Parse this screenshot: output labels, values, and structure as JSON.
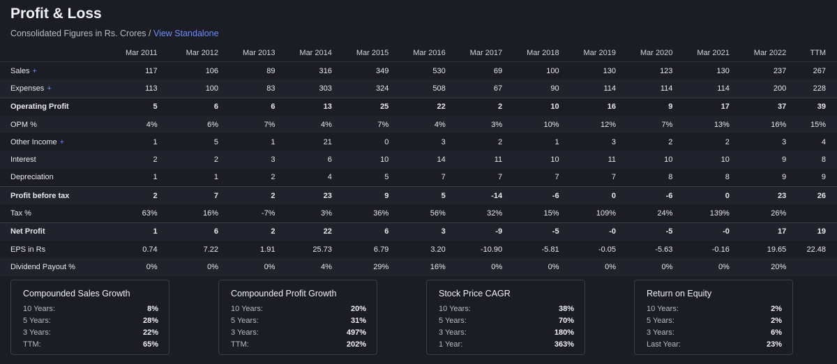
{
  "title": "Profit & Loss",
  "subtitle": {
    "text": "Consolidated Figures in Rs. Crores / ",
    "link": "View Standalone"
  },
  "columns": [
    "Mar 2011",
    "Mar 2012",
    "Mar 2013",
    "Mar 2014",
    "Mar 2015",
    "Mar 2016",
    "Mar 2017",
    "Mar 2018",
    "Mar 2019",
    "Mar 2020",
    "Mar 2021",
    "Mar 2022",
    "TTM"
  ],
  "rows": [
    {
      "label": "Sales",
      "plus": "+",
      "values": [
        "117",
        "106",
        "89",
        "316",
        "349",
        "530",
        "69",
        "100",
        "130",
        "123",
        "130",
        "237",
        "267"
      ]
    },
    {
      "label": "Expenses",
      "plus": "+",
      "values": [
        "113",
        "100",
        "83",
        "303",
        "324",
        "508",
        "67",
        "90",
        "114",
        "114",
        "114",
        "200",
        "228"
      ]
    },
    {
      "label": "Operating Profit",
      "values": [
        "5",
        "6",
        "6",
        "13",
        "25",
        "22",
        "2",
        "10",
        "16",
        "9",
        "17",
        "37",
        "39"
      ]
    },
    {
      "label": "OPM %",
      "values": [
        "4%",
        "6%",
        "7%",
        "4%",
        "7%",
        "4%",
        "3%",
        "10%",
        "12%",
        "7%",
        "13%",
        "16%",
        "15%"
      ]
    },
    {
      "label": "Other Income",
      "plus": "+",
      "values": [
        "1",
        "5",
        "1",
        "21",
        "0",
        "3",
        "2",
        "1",
        "3",
        "2",
        "2",
        "3",
        "4"
      ]
    },
    {
      "label": "Interest",
      "values": [
        "2",
        "2",
        "3",
        "6",
        "10",
        "14",
        "11",
        "10",
        "11",
        "10",
        "10",
        "9",
        "8"
      ]
    },
    {
      "label": "Depreciation",
      "values": [
        "1",
        "1",
        "2",
        "4",
        "5",
        "7",
        "7",
        "7",
        "7",
        "8",
        "8",
        "9",
        "9"
      ]
    },
    {
      "label": "Profit before tax",
      "values": [
        "2",
        "7",
        "2",
        "23",
        "9",
        "5",
        "-14",
        "-6",
        "0",
        "-6",
        "0",
        "23",
        "26"
      ]
    },
    {
      "label": "Tax %",
      "values": [
        "63%",
        "16%",
        "-7%",
        "3%",
        "36%",
        "56%",
        "32%",
        "15%",
        "109%",
        "24%",
        "139%",
        "26%",
        ""
      ]
    },
    {
      "label": "Net Profit",
      "values": [
        "1",
        "6",
        "2",
        "22",
        "6",
        "3",
        "-9",
        "-5",
        "-0",
        "-5",
        "-0",
        "17",
        "19"
      ]
    },
    {
      "label": "EPS in Rs",
      "values": [
        "0.74",
        "7.22",
        "1.91",
        "25.73",
        "6.79",
        "3.20",
        "-10.90",
        "-5.81",
        "-0.05",
        "-5.63",
        "-0.16",
        "19.65",
        "22.48"
      ]
    },
    {
      "label": "Dividend Payout %",
      "values": [
        "0%",
        "0%",
        "0%",
        "4%",
        "29%",
        "16%",
        "0%",
        "0%",
        "0%",
        "0%",
        "0%",
        "20%",
        ""
      ]
    }
  ],
  "cards": [
    {
      "title": "Compounded Sales Growth",
      "rows": [
        {
          "k": "10 Years:",
          "v": "8%"
        },
        {
          "k": "5 Years:",
          "v": "28%"
        },
        {
          "k": "3 Years:",
          "v": "22%"
        },
        {
          "k": "TTM:",
          "v": "65%"
        }
      ]
    },
    {
      "title": "Compounded Profit Growth",
      "rows": [
        {
          "k": "10 Years:",
          "v": "20%"
        },
        {
          "k": "5 Years:",
          "v": "31%"
        },
        {
          "k": "3 Years:",
          "v": "497%"
        },
        {
          "k": "TTM:",
          "v": "202%"
        }
      ]
    },
    {
      "title": "Stock Price CAGR",
      "rows": [
        {
          "k": "10 Years:",
          "v": "38%"
        },
        {
          "k": "5 Years:",
          "v": "70%"
        },
        {
          "k": "3 Years:",
          "v": "180%"
        },
        {
          "k": "1 Year:",
          "v": "363%"
        }
      ]
    },
    {
      "title": "Return on Equity",
      "rows": [
        {
          "k": "10 Years:",
          "v": "2%"
        },
        {
          "k": "5 Years:",
          "v": "2%"
        },
        {
          "k": "3 Years:",
          "v": "6%"
        },
        {
          "k": "Last Year:",
          "v": "23%"
        }
      ]
    }
  ]
}
